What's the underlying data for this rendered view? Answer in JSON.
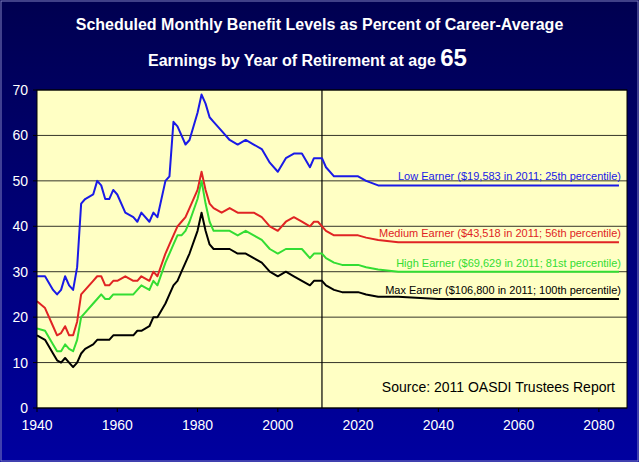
{
  "chart_data": {
    "type": "line",
    "title": "Scheduled Monthly Benefit Levels as Percent of Career-Average",
    "subtitle": "Earnings by Year of Retirement at age",
    "retirement_age": 65,
    "source": "Source: 2011 OASDI Trustees Report",
    "reference_line_x": 2011,
    "x": [
      1940,
      1942,
      1944,
      1945,
      1946,
      1947,
      1948,
      1949,
      1950,
      1951,
      1952,
      1954,
      1955,
      1956,
      1957,
      1958,
      1959,
      1960,
      1962,
      1964,
      1965,
      1966,
      1968,
      1969,
      1970,
      1972,
      1973,
      1974,
      1975,
      1976,
      1977,
      1978,
      1980,
      1981,
      1982,
      1983,
      1984,
      1986,
      1988,
      1990,
      1992,
      1994,
      1996,
      1998,
      2000,
      2002,
      2004,
      2006,
      2008,
      2009,
      2010,
      2011,
      2012,
      2014,
      2016,
      2018,
      2020,
      2022,
      2025,
      2030,
      2040,
      2050,
      2060,
      2070,
      2085
    ],
    "series": [
      {
        "name": "Low Earner ($19,583 in 2011; 25th percentile)",
        "color": "#1a1ae6",
        "values": [
          29,
          29,
          26,
          25,
          26,
          29,
          27,
          26,
          31,
          45,
          46,
          47,
          50,
          49,
          46,
          46,
          48,
          47,
          43,
          42,
          41,
          43,
          41,
          43,
          42,
          50,
          51,
          63,
          62,
          60,
          58,
          59,
          65,
          69,
          67,
          64,
          63,
          61,
          59,
          58,
          59,
          58,
          57,
          54,
          52,
          55,
          56,
          56,
          53,
          55,
          55,
          55,
          53,
          51,
          51,
          51,
          51,
          50,
          49,
          49,
          49,
          49,
          49,
          49,
          49
        ]
      },
      {
        "name": "Medium Earner ($43,518 in 2011; 56th percentile)",
        "color": "#e02424",
        "values": [
          23.5,
          22,
          18,
          16,
          16.5,
          18,
          16,
          16,
          19,
          25,
          26,
          28,
          29,
          29,
          27,
          27,
          28,
          28,
          29,
          28,
          28,
          29,
          28,
          30,
          29,
          34,
          36,
          38,
          40,
          41,
          42,
          44,
          48,
          52,
          48,
          45,
          44,
          43,
          44,
          43,
          43,
          43,
          42,
          40,
          39,
          41,
          42,
          41,
          40,
          41,
          41,
          40,
          39,
          38,
          38,
          38,
          38,
          37.5,
          37,
          36.5,
          36.5,
          36.5,
          36.5,
          36.5,
          36.5
        ]
      },
      {
        "name": "High Earner ($69,629 in 2011; 81st percentile)",
        "color": "#33dd33",
        "values": [
          17.5,
          17,
          14,
          12.5,
          12.5,
          14,
          13,
          12.5,
          15,
          20,
          21,
          23,
          24,
          25,
          24,
          24,
          25,
          25,
          25,
          25,
          26,
          27,
          26,
          28,
          27,
          32,
          34,
          36,
          38,
          38,
          39,
          41,
          46,
          50,
          45,
          41,
          39,
          39,
          39,
          38,
          39,
          38,
          37,
          35,
          34,
          35,
          35,
          35,
          33,
          34,
          34,
          34,
          33,
          32,
          31.5,
          31.5,
          31.5,
          31,
          30.5,
          30,
          30,
          30,
          30,
          30,
          30
        ]
      },
      {
        "name": "Max Earner ($106,800 in 2011; 100th percentile)",
        "color": "#000000",
        "values": [
          16,
          15,
          12,
          10.5,
          10,
          11,
          10,
          9,
          10,
          12,
          13,
          14,
          15,
          15,
          15,
          15,
          16,
          16,
          16,
          16,
          17,
          17,
          18,
          20,
          20,
          23,
          25,
          27,
          28,
          30,
          32,
          34,
          39,
          43,
          39,
          36,
          35,
          35,
          35,
          34,
          34,
          33,
          32,
          30,
          29,
          30,
          29,
          28,
          27,
          28,
          28,
          28,
          27,
          26,
          25.5,
          25.5,
          25.5,
          25,
          24.5,
          24.5,
          24,
          24,
          24,
          24,
          24
        ]
      }
    ],
    "xlim": [
      1940,
      2087
    ],
    "xticks": [
      1940,
      1960,
      1980,
      2000,
      2020,
      2040,
      2060,
      2080
    ],
    "ylim": [
      0,
      70
    ],
    "yticks": [
      0,
      10,
      20,
      30,
      40,
      50,
      60,
      70
    ],
    "grid": true
  }
}
